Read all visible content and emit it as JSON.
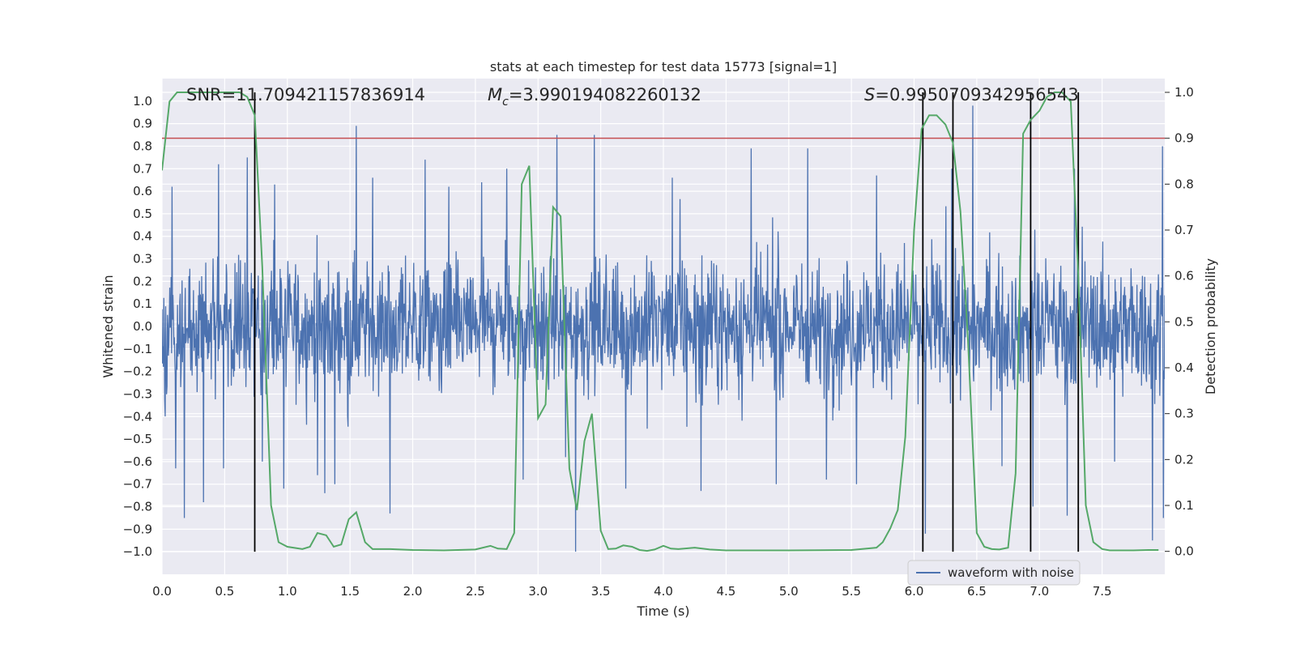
{
  "chart_data": {
    "type": "line",
    "title": "stats at each timestep for test data 15773 [signal=1]",
    "xlabel": "Time (s)",
    "ylabel": "Whitened strain",
    "y2label": "Detection probability",
    "xlim": [
      0.0,
      8.0
    ],
    "ylim": [
      -1.1,
      1.1
    ],
    "y2lim": [
      -0.05,
      1.03
    ],
    "xticks": [
      0.0,
      0.5,
      1.0,
      1.5,
      2.0,
      2.5,
      3.0,
      3.5,
      4.0,
      4.5,
      5.0,
      5.5,
      6.0,
      6.5,
      7.0,
      7.5
    ],
    "yticks": [
      -1.0,
      -0.9,
      -0.8,
      -0.7,
      -0.6,
      -0.5,
      -0.4,
      -0.3,
      -0.2,
      -0.1,
      0.0,
      0.1,
      0.2,
      0.3,
      0.4,
      0.5,
      0.6,
      0.7,
      0.8,
      0.9,
      1.0
    ],
    "y2ticks": [
      0.0,
      0.1,
      0.2,
      0.3,
      0.4,
      0.5,
      0.6,
      0.7,
      0.8,
      0.9,
      1.0
    ],
    "threshold": {
      "axis": "y2",
      "value": 0.9,
      "color": "#c44e52"
    },
    "vertical_lines": [
      0.74,
      6.07,
      6.31,
      6.93,
      7.31
    ],
    "annotations": {
      "snr": "SNR=11.709421157836914",
      "mc_symbol": "M",
      "mc_sub": "c",
      "mc_value": "=3.990194082260132",
      "s_symbol": "S",
      "s_value": "=0.9950709342956543"
    },
    "legend": {
      "label": "waveform with noise",
      "position": "lower-right"
    },
    "series": [
      {
        "name": "waveform with noise",
        "axis": "y",
        "color": "#4c72b0",
        "x_start": 0.0,
        "x_end": 8.0,
        "typical_band": [
          -0.38,
          0.38
        ],
        "spikes": [
          {
            "x": 0.08,
            "y": 0.62
          },
          {
            "x": 0.11,
            "y": -0.63
          },
          {
            "x": 0.18,
            "y": -0.85
          },
          {
            "x": 0.33,
            "y": -0.78
          },
          {
            "x": 0.45,
            "y": 0.72
          },
          {
            "x": 0.49,
            "y": -0.63
          },
          {
            "x": 0.68,
            "y": 0.75
          },
          {
            "x": 0.8,
            "y": -0.6
          },
          {
            "x": 0.9,
            "y": 0.63
          },
          {
            "x": 0.97,
            "y": -0.72
          },
          {
            "x": 1.24,
            "y": -0.66
          },
          {
            "x": 1.3,
            "y": -0.74
          },
          {
            "x": 1.38,
            "y": -0.7
          },
          {
            "x": 1.55,
            "y": 0.89
          },
          {
            "x": 1.68,
            "y": 0.66
          },
          {
            "x": 1.82,
            "y": -0.83
          },
          {
            "x": 2.1,
            "y": 0.74
          },
          {
            "x": 2.29,
            "y": 0.62
          },
          {
            "x": 2.55,
            "y": 0.64
          },
          {
            "x": 2.75,
            "y": 0.7
          },
          {
            "x": 2.88,
            "y": -0.68
          },
          {
            "x": 3.15,
            "y": 0.85
          },
          {
            "x": 3.22,
            "y": -0.58
          },
          {
            "x": 3.3,
            "y": -1.0
          },
          {
            "x": 3.45,
            "y": 0.85
          },
          {
            "x": 3.7,
            "y": -0.72
          },
          {
            "x": 4.07,
            "y": 0.66
          },
          {
            "x": 4.3,
            "y": -0.73
          },
          {
            "x": 4.7,
            "y": 0.79
          },
          {
            "x": 4.9,
            "y": -0.7
          },
          {
            "x": 5.15,
            "y": 0.79
          },
          {
            "x": 5.3,
            "y": -0.68
          },
          {
            "x": 5.54,
            "y": -0.7
          },
          {
            "x": 5.7,
            "y": 0.67
          },
          {
            "x": 6.09,
            "y": -0.92
          },
          {
            "x": 6.3,
            "y": 0.7
          },
          {
            "x": 6.47,
            "y": 0.98
          },
          {
            "x": 6.7,
            "y": -0.62
          },
          {
            "x": 6.95,
            "y": -0.8
          },
          {
            "x": 7.22,
            "y": -0.84
          },
          {
            "x": 7.28,
            "y": 0.7
          },
          {
            "x": 7.6,
            "y": -0.6
          },
          {
            "x": 7.9,
            "y": -0.95
          },
          {
            "x": 7.98,
            "y": 0.8
          },
          {
            "x": 7.99,
            "y": -0.85
          }
        ]
      },
      {
        "name": "Detection probability",
        "axis": "y2",
        "color": "#55a868",
        "x": [
          0.0,
          0.06,
          0.12,
          0.25,
          0.5,
          0.62,
          0.68,
          0.74,
          0.8,
          0.87,
          0.93,
          1.0,
          1.12,
          1.18,
          1.24,
          1.31,
          1.37,
          1.43,
          1.49,
          1.55,
          1.62,
          1.68,
          1.74,
          1.82,
          2.0,
          2.25,
          2.5,
          2.62,
          2.68,
          2.75,
          2.81,
          2.87,
          2.93,
          3.0,
          3.06,
          3.12,
          3.18,
          3.25,
          3.31,
          3.37,
          3.43,
          3.5,
          3.56,
          3.62,
          3.68,
          3.75,
          3.81,
          3.87,
          3.93,
          4.0,
          4.06,
          4.12,
          4.25,
          4.37,
          4.5,
          5.0,
          5.5,
          5.7,
          5.75,
          5.81,
          5.87,
          5.93,
          6.0,
          6.06,
          6.12,
          6.18,
          6.25,
          6.31,
          6.37,
          6.43,
          6.5,
          6.56,
          6.62,
          6.68,
          6.75,
          6.81,
          6.87,
          6.93,
          7.0,
          7.06,
          7.12,
          7.18,
          7.25,
          7.31,
          7.37,
          7.43,
          7.5,
          7.56,
          7.62,
          7.75,
          7.87,
          7.95
        ],
        "y": [
          0.83,
          0.98,
          1.0,
          1.0,
          1.0,
          1.0,
          0.99,
          0.95,
          0.62,
          0.1,
          0.02,
          0.01,
          0.005,
          0.01,
          0.04,
          0.035,
          0.01,
          0.015,
          0.07,
          0.085,
          0.02,
          0.005,
          0.005,
          0.005,
          0.003,
          0.002,
          0.004,
          0.012,
          0.006,
          0.005,
          0.04,
          0.8,
          0.84,
          0.29,
          0.32,
          0.75,
          0.73,
          0.18,
          0.09,
          0.24,
          0.3,
          0.045,
          0.005,
          0.006,
          0.013,
          0.01,
          0.003,
          0.001,
          0.004,
          0.012,
          0.006,
          0.005,
          0.008,
          0.004,
          0.002,
          0.002,
          0.003,
          0.008,
          0.02,
          0.05,
          0.09,
          0.25,
          0.7,
          0.92,
          0.95,
          0.95,
          0.93,
          0.89,
          0.74,
          0.46,
          0.04,
          0.01,
          0.005,
          0.004,
          0.008,
          0.17,
          0.91,
          0.94,
          0.96,
          0.99,
          1.0,
          1.0,
          0.98,
          0.6,
          0.1,
          0.02,
          0.005,
          0.002,
          0.002,
          0.002,
          0.003,
          0.003
        ]
      }
    ]
  }
}
